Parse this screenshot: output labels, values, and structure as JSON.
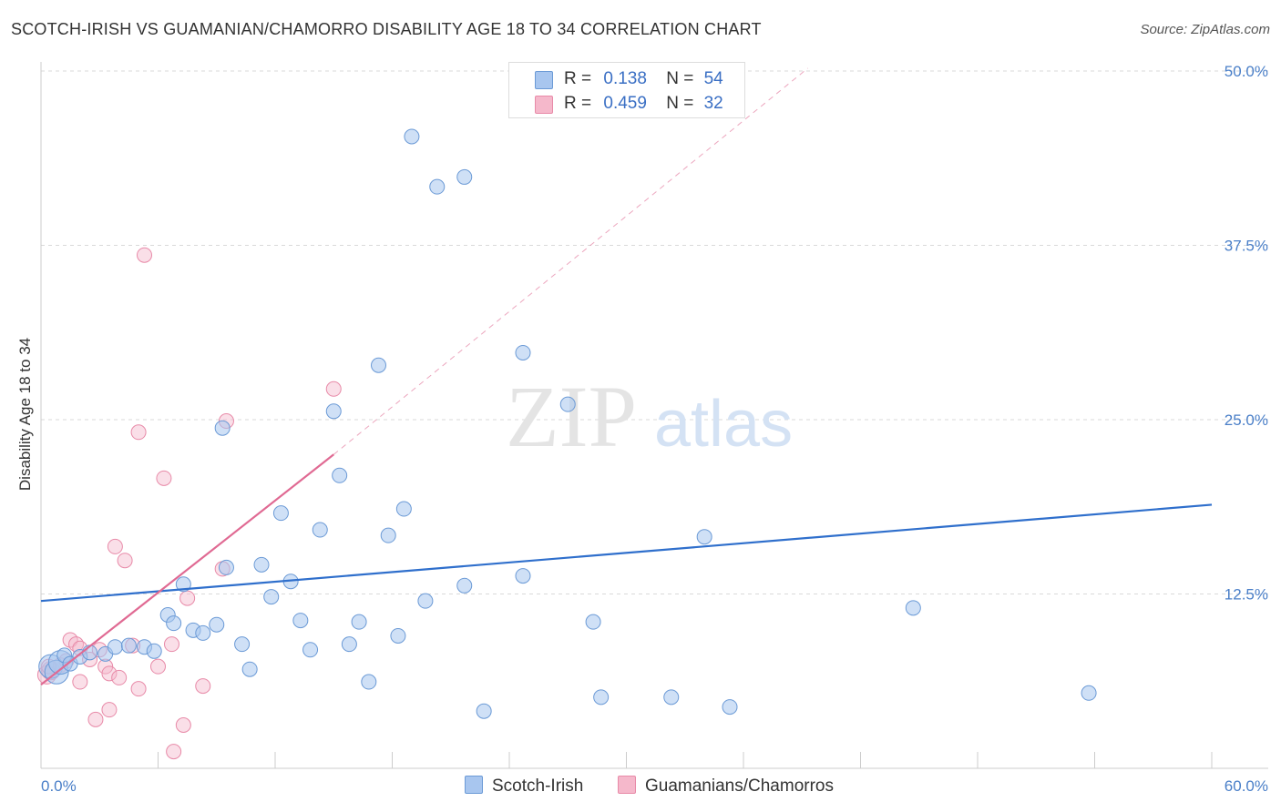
{
  "title": "SCOTCH-IRISH VS GUAMANIAN/CHAMORRO DISABILITY AGE 18 TO 34 CORRELATION CHART",
  "source": "Source: ZipAtlas.com",
  "watermark": {
    "zip": "ZIP",
    "atlas": "atlas"
  },
  "legend_top": {
    "rows": [
      {
        "r_label": "R =",
        "r_value": "0.138",
        "n_label": "N =",
        "n_value": "54"
      },
      {
        "r_label": "R =",
        "r_value": "0.459",
        "n_label": "N =",
        "n_value": "32"
      }
    ]
  },
  "legend_bottom": [
    "Scotch-Irish",
    "Guamanians/Chamorros"
  ],
  "colors": {
    "blue_fill": "#a8c6ef",
    "blue_stroke": "#6b9ad6",
    "blue_line": "#2f6fcc",
    "pink_fill": "#f5b8cb",
    "pink_stroke": "#e88aa8",
    "pink_line": "#e06a93",
    "grid": "#d9d9d9",
    "tick_text": "#4a7fc8"
  },
  "chart_data": {
    "type": "scatter",
    "title": "SCOTCH-IRISH VS GUAMANIAN/CHAMORRO DISABILITY AGE 18 TO 34 CORRELATION CHART",
    "xlabel": "",
    "ylabel": "Disability Age 18 to 34",
    "xlim": [
      0,
      60
    ],
    "ylim": [
      0,
      50
    ],
    "x_tick_labels": [
      {
        "value": 0,
        "label": "0.0%"
      },
      {
        "value": 60,
        "label": "60.0%"
      }
    ],
    "y_tick_labels": [
      {
        "value": 12.5,
        "label": "12.5%"
      },
      {
        "value": 25,
        "label": "25.0%"
      },
      {
        "value": 37.5,
        "label": "37.5%"
      },
      {
        "value": 50,
        "label": "50.0%"
      }
    ],
    "x_minor_ticks": [
      6,
      12,
      18,
      24,
      30,
      36,
      42,
      48,
      54,
      60
    ],
    "grid": true,
    "legend_placement": "top-center",
    "series": [
      {
        "name": "Scotch-Irish",
        "color": "#a8c6ef",
        "points": [
          [
            0.5,
            7.3
          ],
          [
            0.8,
            6.9
          ],
          [
            1.0,
            7.6
          ],
          [
            1.2,
            8.1
          ],
          [
            1.5,
            7.5
          ],
          [
            2.0,
            8.0
          ],
          [
            2.5,
            8.3
          ],
          [
            3.3,
            8.2
          ],
          [
            3.8,
            8.7
          ],
          [
            4.5,
            8.8
          ],
          [
            5.3,
            8.7
          ],
          [
            5.8,
            8.4
          ],
          [
            6.5,
            11.0
          ],
          [
            6.8,
            10.4
          ],
          [
            7.3,
            13.2
          ],
          [
            7.8,
            9.9
          ],
          [
            8.3,
            9.7
          ],
          [
            9.0,
            10.3
          ],
          [
            9.3,
            24.4
          ],
          [
            9.5,
            14.4
          ],
          [
            10.3,
            8.9
          ],
          [
            10.7,
            7.1
          ],
          [
            11.3,
            14.6
          ],
          [
            11.8,
            12.3
          ],
          [
            12.3,
            18.3
          ],
          [
            12.8,
            13.4
          ],
          [
            13.3,
            10.6
          ],
          [
            13.8,
            8.5
          ],
          [
            14.3,
            17.1
          ],
          [
            15.0,
            25.6
          ],
          [
            15.3,
            21.0
          ],
          [
            15.8,
            8.9
          ],
          [
            16.3,
            10.5
          ],
          [
            16.8,
            6.2
          ],
          [
            17.3,
            28.9
          ],
          [
            17.8,
            16.7
          ],
          [
            18.3,
            9.5
          ],
          [
            18.6,
            18.6
          ],
          [
            19.0,
            45.3
          ],
          [
            19.7,
            12.0
          ],
          [
            20.3,
            41.7
          ],
          [
            21.7,
            13.1
          ],
          [
            21.7,
            42.4
          ],
          [
            22.7,
            4.1
          ],
          [
            24.7,
            13.8
          ],
          [
            24.7,
            29.8
          ],
          [
            27.0,
            26.1
          ],
          [
            28.3,
            10.5
          ],
          [
            28.7,
            5.1
          ],
          [
            32.3,
            5.1
          ],
          [
            34.0,
            16.6
          ],
          [
            35.3,
            4.4
          ],
          [
            44.7,
            11.5
          ],
          [
            53.7,
            5.4
          ]
        ]
      },
      {
        "name": "Guamanians/Chamorros",
        "color": "#f5b8cb",
        "points": [
          [
            0.3,
            6.7
          ],
          [
            0.5,
            7.0
          ],
          [
            1.0,
            7.4
          ],
          [
            1.3,
            7.7
          ],
          [
            1.5,
            9.2
          ],
          [
            1.8,
            8.9
          ],
          [
            2.0,
            8.6
          ],
          [
            2.0,
            6.2
          ],
          [
            2.5,
            7.8
          ],
          [
            2.8,
            3.5
          ],
          [
            3.0,
            8.5
          ],
          [
            3.3,
            7.3
          ],
          [
            3.5,
            4.2
          ],
          [
            3.5,
            6.8
          ],
          [
            3.8,
            15.9
          ],
          [
            4.0,
            6.5
          ],
          [
            4.3,
            14.9
          ],
          [
            4.7,
            8.8
          ],
          [
            5.0,
            5.7
          ],
          [
            5.0,
            24.1
          ],
          [
            5.3,
            36.8
          ],
          [
            6.0,
            7.3
          ],
          [
            6.3,
            20.8
          ],
          [
            6.7,
            8.9
          ],
          [
            6.8,
            1.2
          ],
          [
            7.3,
            3.1
          ],
          [
            7.5,
            12.2
          ],
          [
            8.3,
            5.9
          ],
          [
            9.3,
            14.3
          ],
          [
            9.5,
            24.9
          ],
          [
            15.0,
            27.2
          ],
          [
            0.4,
            7.3
          ]
        ]
      }
    ],
    "trend_lines": [
      {
        "series": "Scotch-Irish",
        "x": [
          0,
          60
        ],
        "y": [
          12.0,
          18.9
        ],
        "style": "solid"
      },
      {
        "series": "Guamanians/Chamorros",
        "x": [
          0,
          15.0
        ],
        "y": [
          6.0,
          22.5
        ],
        "style": "solid"
      },
      {
        "series": "Guamanians/Chamorros",
        "x": [
          15.0,
          39.3
        ],
        "y": [
          22.5,
          50.2
        ],
        "style": "dashed"
      }
    ]
  }
}
